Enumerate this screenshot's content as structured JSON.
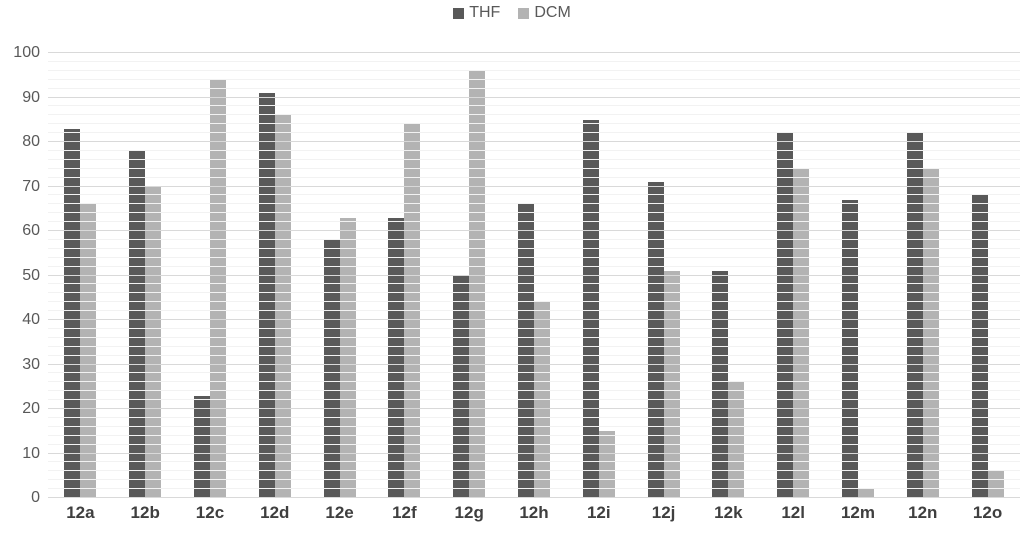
{
  "chart_data": {
    "type": "bar",
    "title": "",
    "categories": [
      "12a",
      "12b",
      "12c",
      "12d",
      "12e",
      "12f",
      "12g",
      "12h",
      "12i",
      "12j",
      "12k",
      "12l",
      "12m",
      "12n",
      "12o"
    ],
    "series": [
      {
        "name": "THF",
        "color": "#595959",
        "values": [
          83,
          78,
          23,
          91,
          58,
          63,
          50,
          66,
          85,
          71,
          51,
          82,
          67,
          82,
          68
        ]
      },
      {
        "name": "DCM",
        "color": "#b3b3b3",
        "values": [
          66,
          70,
          94,
          86,
          63,
          84,
          96,
          44,
          15,
          51,
          26,
          74,
          2,
          74,
          6
        ]
      }
    ],
    "xlabel": "",
    "ylabel": "",
    "ylim": [
      0,
      100
    ],
    "yticks": [
      0,
      10,
      20,
      30,
      40,
      50,
      60,
      70,
      80,
      90,
      100
    ],
    "minor_grid_step": 2,
    "grid": true,
    "legend_position": "top-center"
  },
  "colors": {
    "background": "#ffffff",
    "major_gridline": "#d9d9d9",
    "minor_gridline": "#f2f2f2",
    "axis_label": "#595959",
    "category_label": "#3f3f3f"
  }
}
